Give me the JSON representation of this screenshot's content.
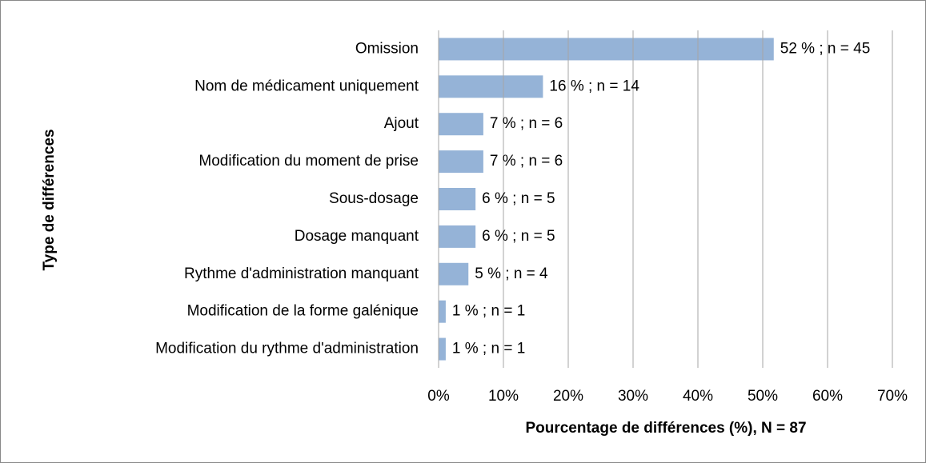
{
  "chart_data": {
    "type": "bar",
    "orientation": "horizontal",
    "x_label": "Pourcentage de différences (%), N = 87",
    "y_label": "Type de différences",
    "categories": [
      "Omission",
      "Nom de médicament uniquement",
      "Ajout",
      "Modification du moment de prise",
      "Sous-dosage",
      "Dosage manquant",
      "Rythme d'administration manquant",
      "Modification de la forme galénique",
      "Modification du rythme d'administration"
    ],
    "values": [
      51.7,
      16.1,
      6.9,
      6.9,
      5.7,
      5.7,
      4.6,
      1.1,
      1.1
    ],
    "value_labels": [
      "52 % ; n = 45",
      "16 % ; n = 14",
      "7 % ; n = 6",
      "7 % ; n = 6",
      "6 % ; n = 5",
      "6 % ; n = 5",
      "5 % ; n = 4",
      "1 % ; n = 1",
      "1 % ; n = 1"
    ],
    "color": "#95b3d7",
    "xlim": [
      0,
      70
    ],
    "xticks": [
      {
        "value": 0,
        "label": "0%"
      },
      {
        "value": 10,
        "label": "10%"
      },
      {
        "value": 20,
        "label": "20%"
      },
      {
        "value": 30,
        "label": "30%"
      },
      {
        "value": 40,
        "label": "40%"
      },
      {
        "value": 50,
        "label": "50%"
      },
      {
        "value": 60,
        "label": "60%"
      },
      {
        "value": 70,
        "label": "70%"
      }
    ],
    "grid": true
  }
}
